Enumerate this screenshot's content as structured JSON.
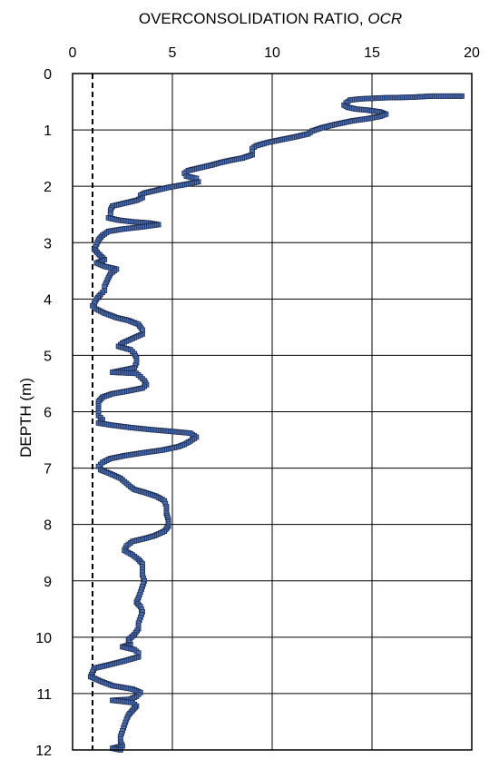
{
  "chart_data": {
    "type": "scatter",
    "title": "",
    "xlabel_main": "OVERCONSOLIDATION RATIO, ",
    "xlabel_italic": "OCR",
    "ylabel": "DEPTH (m)",
    "x_axis_position": "top",
    "y_axis_inverted": true,
    "xlim": [
      0,
      20
    ],
    "ylim": [
      0,
      12
    ],
    "xticks": [
      "0",
      "5",
      "10",
      "15",
      "20"
    ],
    "yticks": [
      "0",
      "1",
      "2",
      "3",
      "4",
      "5",
      "6",
      "7",
      "8",
      "9",
      "10",
      "11",
      "12"
    ],
    "grid": true,
    "reference_line": {
      "x": 1,
      "style": "dashed"
    },
    "marker_fill": "#4a6fb5",
    "marker_edge": "#1f2f55",
    "series": [
      {
        "points": [
          [
            19.5,
            0.4
          ],
          [
            18.7,
            0.4
          ],
          [
            18.0,
            0.4
          ],
          [
            17.0,
            0.42
          ],
          [
            15.6,
            0.43
          ],
          [
            15.0,
            0.44
          ],
          [
            14.4,
            0.45
          ],
          [
            13.9,
            0.47
          ],
          [
            13.7,
            0.52
          ],
          [
            13.6,
            0.56
          ],
          [
            13.8,
            0.6
          ],
          [
            14.2,
            0.63
          ],
          [
            14.8,
            0.65
          ],
          [
            15.4,
            0.68
          ],
          [
            15.7,
            0.72
          ],
          [
            15.4,
            0.76
          ],
          [
            14.8,
            0.8
          ],
          [
            14.0,
            0.84
          ],
          [
            13.2,
            0.9
          ],
          [
            12.5,
            0.96
          ],
          [
            12.0,
            1.02
          ],
          [
            11.8,
            1.07
          ],
          [
            11.2,
            1.12
          ],
          [
            10.5,
            1.17
          ],
          [
            9.8,
            1.22
          ],
          [
            9.2,
            1.28
          ],
          [
            9.0,
            1.33
          ],
          [
            9.0,
            1.38
          ],
          [
            9.0,
            1.44
          ],
          [
            8.5,
            1.5
          ],
          [
            7.9,
            1.54
          ],
          [
            7.4,
            1.58
          ],
          [
            7.0,
            1.62
          ],
          [
            6.4,
            1.67
          ],
          [
            5.8,
            1.72
          ],
          [
            5.6,
            1.77
          ],
          [
            5.7,
            1.82
          ],
          [
            6.2,
            1.86
          ],
          [
            6.3,
            1.92
          ],
          [
            5.6,
            1.97
          ],
          [
            4.8,
            2.02
          ],
          [
            4.2,
            2.07
          ],
          [
            3.6,
            2.12
          ],
          [
            3.4,
            2.16
          ],
          [
            3.5,
            2.2
          ],
          [
            3.2,
            2.25
          ],
          [
            2.6,
            2.3
          ],
          [
            2.0,
            2.35
          ],
          [
            1.9,
            2.42
          ],
          [
            1.9,
            2.5
          ],
          [
            1.8,
            2.56
          ],
          [
            2.3,
            2.6
          ],
          [
            3.0,
            2.63
          ],
          [
            3.8,
            2.65
          ],
          [
            4.3,
            2.68
          ],
          [
            3.5,
            2.72
          ],
          [
            2.5,
            2.76
          ],
          [
            1.8,
            2.8
          ],
          [
            1.5,
            2.87
          ],
          [
            1.3,
            2.95
          ],
          [
            1.2,
            3.03
          ],
          [
            1.1,
            3.12
          ],
          [
            1.3,
            3.2
          ],
          [
            1.6,
            3.3
          ],
          [
            1.2,
            3.36
          ],
          [
            1.6,
            3.42
          ],
          [
            2.2,
            3.47
          ],
          [
            1.9,
            3.55
          ],
          [
            1.8,
            3.62
          ],
          [
            1.7,
            3.7
          ],
          [
            1.6,
            3.78
          ],
          [
            1.6,
            3.85
          ],
          [
            1.4,
            3.92
          ],
          [
            1.2,
            4.0
          ],
          [
            1.1,
            4.07
          ],
          [
            1.0,
            4.12
          ],
          [
            1.2,
            4.18
          ],
          [
            1.6,
            4.25
          ],
          [
            2.2,
            4.33
          ],
          [
            2.8,
            4.38
          ],
          [
            3.3,
            4.45
          ],
          [
            3.5,
            4.55
          ],
          [
            3.5,
            4.62
          ],
          [
            3.0,
            4.7
          ],
          [
            2.5,
            4.78
          ],
          [
            2.3,
            4.84
          ],
          [
            2.9,
            4.9
          ],
          [
            3.1,
            4.97
          ],
          [
            3.2,
            5.05
          ],
          [
            3.2,
            5.13
          ],
          [
            3.1,
            5.22
          ],
          [
            2.0,
            5.3
          ],
          [
            3.2,
            5.32
          ],
          [
            3.4,
            5.38
          ],
          [
            3.6,
            5.45
          ],
          [
            3.7,
            5.52
          ],
          [
            3.5,
            5.58
          ],
          [
            2.8,
            5.63
          ],
          [
            2.0,
            5.68
          ],
          [
            1.5,
            5.74
          ],
          [
            1.3,
            5.82
          ],
          [
            1.3,
            5.9
          ],
          [
            1.3,
            5.98
          ],
          [
            1.3,
            6.07
          ],
          [
            1.5,
            6.14
          ],
          [
            1.3,
            6.2
          ],
          [
            2.0,
            6.24
          ],
          [
            2.9,
            6.28
          ],
          [
            4.0,
            6.32
          ],
          [
            5.0,
            6.35
          ],
          [
            5.9,
            6.38
          ],
          [
            6.2,
            6.45
          ],
          [
            5.9,
            6.52
          ],
          [
            5.6,
            6.58
          ],
          [
            5.3,
            6.62
          ],
          [
            4.5,
            6.68
          ],
          [
            3.5,
            6.73
          ],
          [
            2.6,
            6.78
          ],
          [
            1.9,
            6.83
          ],
          [
            1.5,
            6.9
          ],
          [
            1.3,
            6.97
          ],
          [
            1.4,
            7.03
          ],
          [
            1.9,
            7.1
          ],
          [
            2.4,
            7.18
          ],
          [
            2.7,
            7.27
          ],
          [
            2.9,
            7.33
          ],
          [
            3.1,
            7.38
          ],
          [
            3.6,
            7.43
          ],
          [
            4.2,
            7.5
          ],
          [
            4.6,
            7.58
          ],
          [
            4.7,
            7.68
          ],
          [
            4.7,
            7.8
          ],
          [
            4.8,
            7.92
          ],
          [
            4.8,
            8.03
          ],
          [
            4.6,
            8.12
          ],
          [
            4.1,
            8.2
          ],
          [
            3.6,
            8.25
          ],
          [
            3.0,
            8.3
          ],
          [
            2.7,
            8.38
          ],
          [
            2.6,
            8.46
          ],
          [
            3.0,
            8.54
          ],
          [
            3.3,
            8.62
          ],
          [
            3.5,
            8.7
          ],
          [
            3.5,
            8.8
          ],
          [
            3.5,
            8.9
          ],
          [
            3.6,
            9.0
          ],
          [
            3.5,
            9.1
          ],
          [
            3.4,
            9.2
          ],
          [
            3.3,
            9.3
          ],
          [
            3.2,
            9.38
          ],
          [
            3.4,
            9.46
          ],
          [
            3.5,
            9.55
          ],
          [
            3.4,
            9.65
          ],
          [
            3.3,
            9.75
          ],
          [
            3.3,
            9.85
          ],
          [
            3.1,
            9.95
          ],
          [
            2.8,
            10.05
          ],
          [
            2.9,
            10.13
          ],
          [
            2.5,
            10.17
          ],
          [
            3.1,
            10.22
          ],
          [
            3.3,
            10.28
          ],
          [
            3.3,
            10.35
          ],
          [
            2.6,
            10.42
          ],
          [
            1.7,
            10.5
          ],
          [
            1.1,
            10.55
          ],
          [
            1.0,
            10.62
          ],
          [
            0.9,
            10.7
          ],
          [
            1.4,
            10.78
          ],
          [
            2.0,
            10.86
          ],
          [
            3.0,
            10.92
          ],
          [
            3.4,
            10.98
          ],
          [
            3.2,
            11.05
          ],
          [
            2.9,
            11.1
          ],
          [
            2.0,
            11.12
          ],
          [
            3.0,
            11.16
          ],
          [
            3.2,
            11.22
          ],
          [
            3.0,
            11.3
          ],
          [
            2.8,
            11.38
          ],
          [
            2.7,
            11.46
          ],
          [
            2.6,
            11.56
          ],
          [
            2.5,
            11.66
          ],
          [
            2.4,
            11.76
          ],
          [
            2.4,
            11.86
          ],
          [
            2.5,
            11.93
          ],
          [
            2.0,
            11.97
          ],
          [
            2.4,
            12.0
          ]
        ]
      }
    ]
  }
}
